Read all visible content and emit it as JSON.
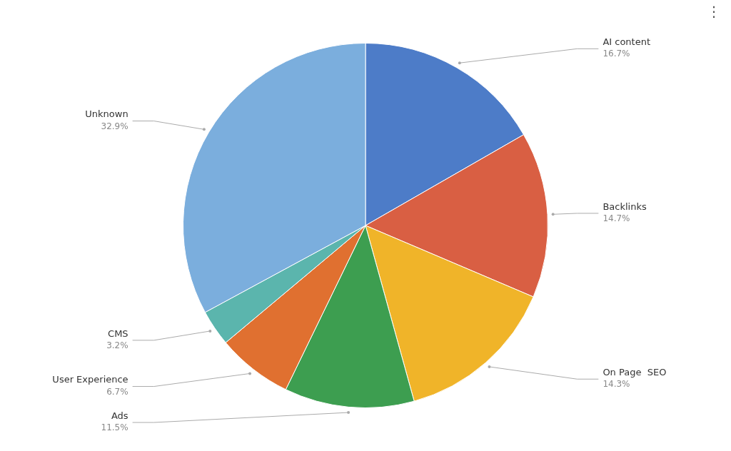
{
  "chart_data": {
    "type": "pie",
    "categories": [
      "AI content",
      "Backlinks",
      "On Page  SEO",
      "Ads",
      "User Experience",
      "CMS",
      "Unknown"
    ],
    "values": [
      16.7,
      14.7,
      14.3,
      11.5,
      6.7,
      3.2,
      32.9
    ],
    "value_labels": [
      "16.7%",
      "14.7%",
      "14.3%",
      "11.5%",
      "6.7%",
      "3.2%",
      "32.9%"
    ],
    "colors": [
      "#4D7CC8",
      "#D95F43",
      "#F0B429",
      "#3D9E50",
      "#E07030",
      "#5BB5AD",
      "#7BAEDD"
    ],
    "data_labels": true,
    "annotations": [
      "⋮"
    ]
  }
}
